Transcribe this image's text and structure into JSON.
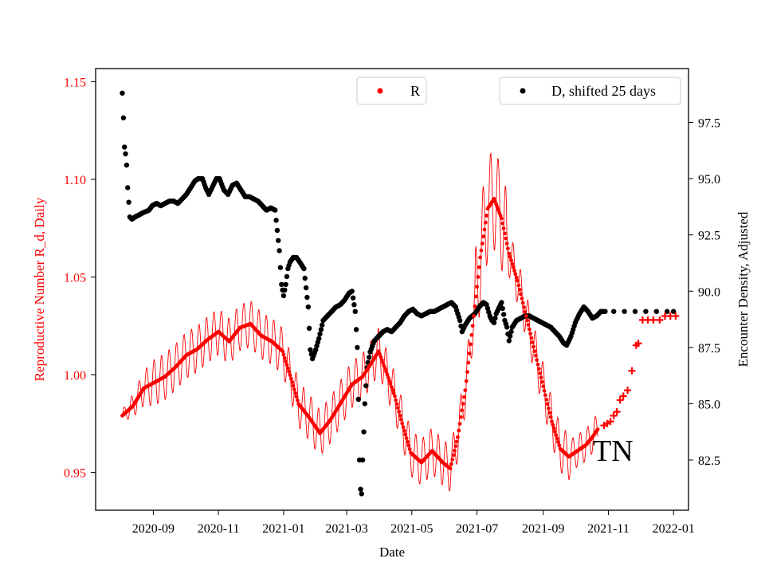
{
  "chart_data": {
    "type": "scatter",
    "xlabel": "Date",
    "ylabel_left": "Reproductive Number R_d, Daily",
    "ylabel_right": "Encounter Density, Adjusted",
    "annotation": "TN",
    "colors": {
      "r_series": "#ff0000",
      "d_series": "#000000",
      "left_axis": "#ff0000",
      "right_axis": "#000000"
    },
    "x_ticks": [
      "2020-09",
      "2020-11",
      "2021-01",
      "2021-03",
      "2021-05",
      "2021-07",
      "2021-09",
      "2021-11",
      "2022-01"
    ],
    "x_tick_values": [
      29,
      90,
      151,
      210,
      271,
      332,
      394,
      455,
      516
    ],
    "x_range": [
      -25,
      530
    ],
    "x_zero_date": "2020-08-03",
    "y_left_ticks": [
      "0.95",
      "1.00",
      "1.05",
      "1.10",
      "1.15"
    ],
    "y_left_range": [
      0.9306,
      1.1567
    ],
    "y_right_ticks": [
      "82.5",
      "85.0",
      "87.5",
      "90.0",
      "92.5",
      "95.0",
      "97.5"
    ],
    "y_right_range": [
      80.27,
      99.89
    ],
    "legend": [
      {
        "label": "R",
        "color": "#ff0000"
      },
      {
        "label": "D, shifted 25 days",
        "color": "#000000"
      }
    ],
    "series": [
      {
        "name": "R",
        "axis": "left",
        "marker": "dot+band",
        "oscillation_amplitude": 0.012,
        "points": [
          [
            0,
            0.979
          ],
          [
            10,
            0.984
          ],
          [
            20,
            0.993
          ],
          [
            30,
            0.996
          ],
          [
            40,
            0.999
          ],
          [
            50,
            1.004
          ],
          [
            60,
            1.01
          ],
          [
            70,
            1.013
          ],
          [
            80,
            1.018
          ],
          [
            90,
            1.022
          ],
          [
            100,
            1.017
          ],
          [
            110,
            1.024
          ],
          [
            120,
            1.026
          ],
          [
            130,
            1.02
          ],
          [
            140,
            1.017
          ],
          [
            150,
            1.012
          ],
          [
            158,
            0.998
          ],
          [
            165,
            0.985
          ],
          [
            175,
            0.978
          ],
          [
            185,
            0.97
          ],
          [
            195,
            0.977
          ],
          [
            205,
            0.986
          ],
          [
            215,
            0.995
          ],
          [
            225,
            0.999
          ],
          [
            232,
            1.005
          ],
          [
            240,
            1.012
          ],
          [
            248,
            1.0
          ],
          [
            255,
            0.989
          ],
          [
            262,
            0.975
          ],
          [
            270,
            0.96
          ],
          [
            280,
            0.955
          ],
          [
            290,
            0.961
          ],
          [
            300,
            0.955
          ],
          [
            307,
            0.952
          ],
          [
            314,
            0.968
          ],
          [
            321,
            0.992
          ],
          [
            328,
            1.025
          ],
          [
            335,
            1.06
          ],
          [
            342,
            1.085
          ],
          [
            348,
            1.09
          ],
          [
            355,
            1.08
          ],
          [
            362,
            1.062
          ],
          [
            370,
            1.048
          ],
          [
            378,
            1.03
          ],
          [
            386,
            1.012
          ],
          [
            394,
            0.994
          ],
          [
            402,
            0.976
          ],
          [
            410,
            0.962
          ],
          [
            418,
            0.958
          ],
          [
            426,
            0.961
          ],
          [
            434,
            0.964
          ],
          [
            440,
            0.968
          ],
          [
            445,
            0.972
          ]
        ]
      },
      {
        "name": "R_plus",
        "axis": "left",
        "marker": "plus",
        "points": [
          [
            451,
            0.974
          ],
          [
            454,
            0.975
          ],
          [
            457,
            0.976
          ],
          [
            460,
            0.979
          ],
          [
            463,
            0.981
          ],
          [
            466,
            0.987
          ],
          [
            469,
            0.989
          ],
          [
            473,
            0.992
          ],
          [
            477,
            1.002
          ],
          [
            481,
            1.015
          ],
          [
            483,
            1.016
          ],
          [
            487,
            1.028
          ],
          [
            492,
            1.028
          ],
          [
            497,
            1.028
          ],
          [
            503,
            1.028
          ],
          [
            508,
            1.03
          ],
          [
            513,
            1.03
          ],
          [
            518,
            1.03
          ]
        ]
      },
      {
        "name": "D, shifted 25 days",
        "axis": "right",
        "marker": "dot",
        "points": [
          [
            0,
            98.8
          ],
          [
            1,
            97.7
          ],
          [
            2,
            96.4
          ],
          [
            3,
            96.1
          ],
          [
            4,
            95.6
          ],
          [
            5,
            94.6
          ],
          [
            7,
            93.3
          ],
          [
            9,
            93.2
          ],
          [
            12,
            93.3
          ],
          [
            16,
            93.4
          ],
          [
            20,
            93.5
          ],
          [
            25,
            93.6
          ],
          [
            28,
            93.8
          ],
          [
            32,
            93.9
          ],
          [
            36,
            93.8
          ],
          [
            40,
            93.9
          ],
          [
            44,
            94.0
          ],
          [
            48,
            94.0
          ],
          [
            52,
            93.9
          ],
          [
            56,
            94.1
          ],
          [
            60,
            94.3
          ],
          [
            64,
            94.6
          ],
          [
            68,
            94.9
          ],
          [
            71,
            95.0
          ],
          [
            75,
            95.0
          ],
          [
            78,
            94.6
          ],
          [
            81,
            94.3
          ],
          [
            84,
            94.6
          ],
          [
            88,
            95.0
          ],
          [
            91,
            95.0
          ],
          [
            95,
            94.5
          ],
          [
            99,
            94.3
          ],
          [
            103,
            94.7
          ],
          [
            107,
            94.8
          ],
          [
            111,
            94.5
          ],
          [
            115,
            94.2
          ],
          [
            119,
            94.2
          ],
          [
            123,
            94.1
          ],
          [
            127,
            94.0
          ],
          [
            131,
            93.8
          ],
          [
            135,
            93.6
          ],
          [
            139,
            93.7
          ],
          [
            143,
            93.6
          ],
          [
            147,
            91.8
          ],
          [
            149,
            90.3
          ],
          [
            151,
            89.8
          ],
          [
            153,
            90.3
          ],
          [
            155,
            91.0
          ],
          [
            157,
            91.3
          ],
          [
            160,
            91.5
          ],
          [
            163,
            91.5
          ],
          [
            166,
            91.3
          ],
          [
            170,
            91.0
          ],
          [
            174,
            89.3
          ],
          [
            176,
            87.4
          ],
          [
            178,
            87.0
          ],
          [
            181,
            87.4
          ],
          [
            184,
            87.9
          ],
          [
            188,
            88.7
          ],
          [
            192,
            88.9
          ],
          [
            196,
            89.1
          ],
          [
            200,
            89.3
          ],
          [
            204,
            89.4
          ],
          [
            208,
            89.6
          ],
          [
            212,
            89.9
          ],
          [
            215,
            90.0
          ],
          [
            218,
            89.1
          ],
          [
            220,
            87.5
          ],
          [
            221,
            85.2
          ],
          [
            222,
            82.5
          ],
          [
            223,
            81.2
          ],
          [
            224,
            81.0
          ],
          [
            225,
            82.5
          ],
          [
            227,
            85.0
          ],
          [
            229,
            86.6
          ],
          [
            232,
            87.3
          ],
          [
            236,
            87.8
          ],
          [
            240,
            88.0
          ],
          [
            244,
            88.2
          ],
          [
            248,
            88.3
          ],
          [
            252,
            88.2
          ],
          [
            256,
            88.4
          ],
          [
            260,
            88.6
          ],
          [
            264,
            88.9
          ],
          [
            268,
            89.1
          ],
          [
            272,
            89.2
          ],
          [
            276,
            89.0
          ],
          [
            280,
            88.9
          ],
          [
            284,
            89.0
          ],
          [
            288,
            89.1
          ],
          [
            292,
            89.1
          ],
          [
            296,
            89.2
          ],
          [
            300,
            89.3
          ],
          [
            304,
            89.4
          ],
          [
            308,
            89.5
          ],
          [
            312,
            89.3
          ],
          [
            316,
            88.7
          ],
          [
            318,
            88.2
          ],
          [
            321,
            88.5
          ],
          [
            325,
            88.8
          ],
          [
            330,
            89.0
          ],
          [
            334,
            89.3
          ],
          [
            338,
            89.5
          ],
          [
            341,
            89.4
          ],
          [
            344,
            88.9
          ],
          [
            346,
            88.7
          ],
          [
            348,
            88.6
          ],
          [
            350,
            89.0
          ],
          [
            353,
            89.3
          ],
          [
            355,
            89.5
          ],
          [
            358,
            88.7
          ],
          [
            360,
            88.4
          ],
          [
            362,
            87.8
          ],
          [
            365,
            88.4
          ],
          [
            369,
            88.7
          ],
          [
            373,
            88.8
          ],
          [
            377,
            88.9
          ],
          [
            381,
            88.9
          ],
          [
            385,
            88.8
          ],
          [
            389,
            88.7
          ],
          [
            393,
            88.6
          ],
          [
            397,
            88.5
          ],
          [
            401,
            88.4
          ],
          [
            405,
            88.2
          ],
          [
            409,
            88.0
          ],
          [
            413,
            87.7
          ],
          [
            416,
            87.6
          ],
          [
            420,
            88.0
          ],
          [
            424,
            88.6
          ],
          [
            428,
            89.0
          ],
          [
            432,
            89.3
          ],
          [
            436,
            89.1
          ],
          [
            440,
            88.8
          ],
          [
            444,
            88.9
          ],
          [
            448,
            89.1
          ],
          [
            452,
            89.1
          ],
          [
            460,
            89.1
          ],
          [
            470,
            89.1
          ],
          [
            480,
            89.1
          ],
          [
            490,
            89.1
          ],
          [
            500,
            89.1
          ],
          [
            510,
            89.1
          ],
          [
            516,
            89.1
          ]
        ]
      }
    ]
  }
}
